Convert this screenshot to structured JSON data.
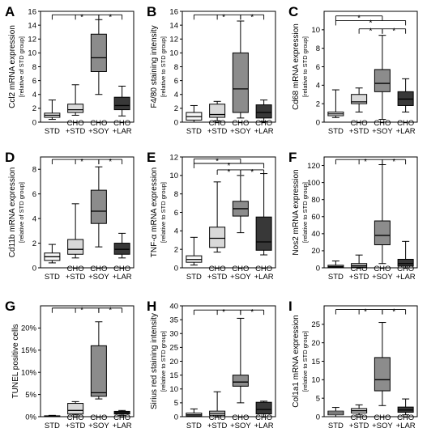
{
  "categories": [
    [
      "STD"
    ],
    [
      "CHO",
      "+STD"
    ],
    [
      "CHO",
      "+SOY"
    ],
    [
      "CHO",
      "+LAR"
    ]
  ],
  "box_colors": [
    "#f7f7f7",
    "#d9d9d9",
    "#8c8c8c",
    "#383838"
  ],
  "chart_data": [
    {
      "type": "box",
      "letter": "A",
      "ylabel": "Ccl2 mRNA expression",
      "ysub": "[relative of STD group]",
      "ylim": [
        0,
        16
      ],
      "yticks": [
        0,
        2,
        4,
        6,
        8,
        10,
        12,
        14,
        16
      ],
      "ytick_labels": [
        "0",
        "2",
        "4",
        "6",
        "8",
        "10",
        "12",
        "14",
        "16"
      ],
      "boxes": [
        {
          "min": 0.4,
          "q1": 0.7,
          "median": 1.0,
          "q3": 1.3,
          "max": 3.2
        },
        {
          "min": 1.0,
          "q1": 1.4,
          "median": 1.8,
          "q3": 2.6,
          "max": 5.4
        },
        {
          "min": 4.0,
          "q1": 7.3,
          "median": 9.3,
          "q3": 12.7,
          "max": 14.8
        },
        {
          "min": 0.9,
          "q1": 1.8,
          "median": 2.4,
          "q3": 3.6,
          "max": 5.2
        }
      ],
      "sig": [
        {
          "type": "multi",
          "from": 0,
          "to": [
            1,
            2
          ],
          "star": "*",
          "level": 15.5
        },
        {
          "type": "pair",
          "a": 2,
          "b": 3,
          "star": "*",
          "level": 15.5
        }
      ]
    },
    {
      "type": "box",
      "letter": "B",
      "ylabel": "F4/80 staining intensity",
      "ysub": "[relative to STD group]",
      "ylim": [
        0,
        16
      ],
      "yticks": [
        0,
        2,
        4,
        6,
        8,
        10,
        12,
        14,
        16
      ],
      "ytick_labels": [
        "0",
        "2",
        "4",
        "6",
        "8",
        "10",
        "12",
        "14",
        "16"
      ],
      "boxes": [
        {
          "min": 0.0,
          "q1": 0.3,
          "median": 0.8,
          "q3": 1.4,
          "max": 2.4
        },
        {
          "min": 0.2,
          "q1": 0.7,
          "median": 1.1,
          "q3": 2.6,
          "max": 3.0
        },
        {
          "min": 0.6,
          "q1": 1.4,
          "median": 4.8,
          "q3": 10.0,
          "max": 14.6
        },
        {
          "min": 0.1,
          "q1": 0.6,
          "median": 1.4,
          "q3": 2.5,
          "max": 3.2
        }
      ],
      "sig": [
        {
          "type": "multi",
          "from": 0,
          "to": [
            1,
            2
          ],
          "star": "*",
          "level": 15.5
        },
        {
          "type": "pair",
          "a": 2,
          "b": 3,
          "star": "*",
          "level": 15.5
        }
      ]
    },
    {
      "type": "box",
      "letter": "C",
      "ylabel": "Cd68 mRNA expression",
      "ysub": "[relative to STD group]",
      "ylim": [
        0,
        12
      ],
      "yticks": [
        0,
        2,
        4,
        6,
        8,
        10
      ],
      "ytick_labels": [
        "0",
        "2",
        "4",
        "6",
        "8",
        "10"
      ],
      "boxes": [
        {
          "min": 0.5,
          "q1": 0.7,
          "median": 0.9,
          "q3": 1.1,
          "max": 3.5
        },
        {
          "min": 1.1,
          "q1": 2.0,
          "median": 2.2,
          "q3": 3.0,
          "max": 3.7
        },
        {
          "min": 0.3,
          "q1": 3.3,
          "median": 4.2,
          "q3": 5.7,
          "max": 9.4
        },
        {
          "min": 1.1,
          "q1": 1.8,
          "median": 2.5,
          "q3": 3.3,
          "max": 4.7
        }
      ],
      "sig": [
        {
          "type": "pair",
          "a": 0,
          "b": 2,
          "star": "*",
          "level": 11.5
        },
        {
          "type": "pair",
          "a": 0,
          "b": 3,
          "star": "*",
          "level": 11.0
        },
        {
          "type": "pair",
          "a": 1,
          "b": 2,
          "star": "*",
          "level": 10.1
        },
        {
          "type": "pair",
          "a": 2,
          "b": 3,
          "star": "*",
          "level": 10.1
        }
      ]
    },
    {
      "type": "box",
      "letter": "D",
      "ylabel": "Cd11b mRNA expression",
      "ysub": "[relative of STD group]",
      "ylim": [
        0,
        9
      ],
      "yticks": [
        0,
        2,
        4,
        6,
        8
      ],
      "ytick_labels": [
        "0",
        "2",
        "4",
        "6",
        "8"
      ],
      "boxes": [
        {
          "min": 0.4,
          "q1": 0.6,
          "median": 0.9,
          "q3": 1.2,
          "max": 1.9
        },
        {
          "min": 0.8,
          "q1": 1.1,
          "median": 1.5,
          "q3": 2.3,
          "max": 5.2
        },
        {
          "min": 1.7,
          "q1": 3.6,
          "median": 4.6,
          "q3": 6.3,
          "max": 8.2
        },
        {
          "min": 0.8,
          "q1": 1.1,
          "median": 1.5,
          "q3": 2.0,
          "max": 2.8
        }
      ],
      "sig": [
        {
          "type": "multi",
          "from": 0,
          "to": [
            1,
            2
          ],
          "star": "*",
          "level": 8.8
        },
        {
          "type": "pair",
          "a": 2,
          "b": 3,
          "star": "*",
          "level": 8.8
        }
      ]
    },
    {
      "type": "box",
      "letter": "E",
      "ylabel": "TNF-α mRNA expression",
      "ysub": "[relative to STD group]",
      "ylim": [
        0,
        12
      ],
      "yticks": [
        0,
        2,
        4,
        6,
        8,
        10,
        12
      ],
      "ytick_labels": [
        "0",
        "2",
        "4",
        "6",
        "8",
        "10",
        "12"
      ],
      "boxes": [
        {
          "min": 0.3,
          "q1": 0.6,
          "median": 0.9,
          "q3": 1.3,
          "max": 3.3
        },
        {
          "min": 1.7,
          "q1": 2.2,
          "median": 3.2,
          "q3": 4.4,
          "max": 9.3
        },
        {
          "min": 3.8,
          "q1": 5.6,
          "median": 6.4,
          "q3": 7.2,
          "max": 10.0
        },
        {
          "min": 1.4,
          "q1": 1.9,
          "median": 2.8,
          "q3": 5.5,
          "max": 10.2
        }
      ],
      "sig": [
        {
          "type": "pair",
          "a": 0,
          "b": 2,
          "star": "*",
          "level": 11.8
        },
        {
          "type": "pair",
          "a": 0,
          "b": 3,
          "star": "*",
          "level": 11.3
        },
        {
          "type": "pair",
          "a": 1,
          "b": 2,
          "star": "*",
          "level": 10.6
        },
        {
          "type": "pair",
          "a": 2,
          "b": 3,
          "star": "*",
          "level": 10.6
        }
      ]
    },
    {
      "type": "box",
      "letter": "F",
      "ylabel": "Nos2 mRNA expression",
      "ysub": "[relative to STD group]",
      "ylim": [
        0,
        130
      ],
      "yticks": [
        0,
        20,
        40,
        60,
        80,
        100,
        120
      ],
      "ytick_labels": [
        "0",
        "20",
        "40",
        "60",
        "80",
        "100",
        "120"
      ],
      "boxes": [
        {
          "min": 0,
          "q1": 0.5,
          "median": 1.5,
          "q3": 3.0,
          "max": 8
        },
        {
          "min": 0,
          "q1": 1,
          "median": 2.5,
          "q3": 5,
          "max": 15
        },
        {
          "min": 5,
          "q1": 27,
          "median": 38,
          "q3": 55,
          "max": 121
        },
        {
          "min": 0,
          "q1": 2,
          "median": 5,
          "q3": 10,
          "max": 31
        }
      ],
      "sig": [
        {
          "type": "multi",
          "from": 0,
          "to": [
            1,
            2
          ],
          "star": "*",
          "level": 127
        },
        {
          "type": "pair",
          "a": 2,
          "b": 3,
          "star": "*",
          "level": 127
        }
      ]
    },
    {
      "type": "box",
      "letter": "G",
      "ylabel": "TUNEL positive cells",
      "ysub": "",
      "ylim": [
        0,
        0.25
      ],
      "yticks": [
        0,
        0.05,
        0.1,
        0.15,
        0.2
      ],
      "ytick_labels": [
        "0%",
        "5%",
        "10%",
        "15%",
        "20%"
      ],
      "boxes": [
        {
          "min": 0.0,
          "q1": 0.0,
          "median": 0.001,
          "q3": 0.002,
          "max": 0.003
        },
        {
          "min": 0.004,
          "q1": 0.006,
          "median": 0.014,
          "q3": 0.03,
          "max": 0.034
        },
        {
          "min": 0.04,
          "q1": 0.046,
          "median": 0.054,
          "q3": 0.16,
          "max": 0.214
        },
        {
          "min": 0.003,
          "q1": 0.006,
          "median": 0.009,
          "q3": 0.012,
          "max": 0.014
        }
      ],
      "sig": [
        {
          "type": "multi",
          "from": 0,
          "to": [
            1,
            2
          ],
          "star": "*",
          "level": 0.245
        },
        {
          "type": "pair",
          "a": 2,
          "b": 3,
          "star": "*",
          "level": 0.245
        }
      ]
    },
    {
      "type": "box",
      "letter": "H",
      "ylabel": "Sirius red staining intensity",
      "ysub": "[relative to STD group]",
      "ylim": [
        0,
        40
      ],
      "yticks": [
        0,
        5,
        10,
        15,
        20,
        25,
        30,
        35,
        40
      ],
      "ytick_labels": [
        "0",
        "5",
        "10",
        "15",
        "20",
        "25",
        "30",
        "35",
        "40"
      ],
      "boxes": [
        {
          "min": 0,
          "q1": 0.3,
          "median": 0.7,
          "q3": 1.3,
          "max": 2.8
        },
        {
          "min": 0,
          "q1": 0.5,
          "median": 1.2,
          "q3": 2.0,
          "max": 9.0
        },
        {
          "min": 5,
          "q1": 11,
          "median": 12.5,
          "q3": 15,
          "max": 35.5
        },
        {
          "min": 0,
          "q1": 1.0,
          "median": 2.6,
          "q3": 5.2,
          "max": 5.6
        }
      ],
      "sig": [
        {
          "type": "multi",
          "from": 0,
          "to": [
            1,
            2
          ],
          "star": "*",
          "level": 38.5
        },
        {
          "type": "pair",
          "a": 2,
          "b": 3,
          "star": "*",
          "level": 38.5
        }
      ]
    },
    {
      "type": "box",
      "letter": "I",
      "ylabel": "Col1a1 mRNA expression",
      "ysub": "[relative to STD group]",
      "ylim": [
        0,
        30
      ],
      "yticks": [
        0,
        5,
        10,
        15,
        20,
        25
      ],
      "ytick_labels": [
        "0",
        "5",
        "10",
        "15",
        "20",
        "25"
      ],
      "boxes": [
        {
          "min": 0,
          "q1": 0.5,
          "median": 1.0,
          "q3": 1.5,
          "max": 2.5
        },
        {
          "min": 0.5,
          "q1": 1.0,
          "median": 1.6,
          "q3": 2.2,
          "max": 3.2
        },
        {
          "min": 3,
          "q1": 7,
          "median": 10,
          "q3": 16,
          "max": 25.5
        },
        {
          "min": 0.5,
          "q1": 1.2,
          "median": 1.8,
          "q3": 2.6,
          "max": 4.8
        }
      ],
      "sig": [
        {
          "type": "multi",
          "from": 0,
          "to": [
            1,
            2
          ],
          "star": "*",
          "level": 29.0
        },
        {
          "type": "pair",
          "a": 2,
          "b": 3,
          "star": "*",
          "level": 29.0
        }
      ]
    }
  ]
}
